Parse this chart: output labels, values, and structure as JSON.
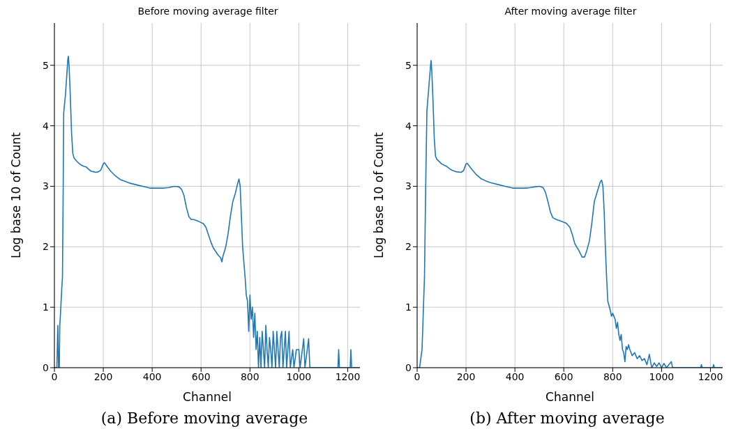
{
  "chart_data": [
    {
      "type": "line",
      "title": "Before moving average filter",
      "xlabel": "Channel",
      "ylabel": "Log base 10 of Count",
      "annotations": [
        "(a) Before moving average"
      ],
      "xlim": [
        0,
        1250
      ],
      "ylim": [
        0,
        5.7
      ],
      "xticks": [
        0,
        200,
        400,
        600,
        800,
        1000,
        1200
      ],
      "yticks": [
        0,
        1,
        2,
        3,
        4,
        5
      ],
      "grid": true,
      "legend": false,
      "marker": "none",
      "line_style": "solid",
      "series": [
        {
          "color": "#1f77b4",
          "x": [
            0,
            10,
            14,
            17,
            20,
            22,
            25,
            30,
            33,
            36,
            38,
            40,
            45,
            50,
            55,
            57,
            60,
            65,
            70,
            75,
            80,
            90,
            100,
            110,
            120,
            130,
            140,
            150,
            160,
            170,
            180,
            190,
            200,
            205,
            215,
            230,
            250,
            270,
            290,
            310,
            330,
            350,
            370,
            390,
            410,
            430,
            450,
            470,
            490,
            510,
            520,
            530,
            540,
            550,
            560,
            570,
            590,
            610,
            620,
            630,
            640,
            650,
            660,
            670,
            680,
            685,
            690,
            700,
            710,
            720,
            730,
            740,
            750,
            755,
            760,
            765,
            770,
            780,
            785,
            790,
            795,
            800,
            805,
            810,
            815,
            820,
            825,
            830,
            835,
            840,
            845,
            850,
            855,
            860,
            865,
            870,
            875,
            880,
            885,
            890,
            895,
            900,
            905,
            910,
            915,
            920,
            925,
            930,
            935,
            940,
            945,
            950,
            955,
            960,
            965,
            975,
            980,
            990,
            1000,
            1005,
            1020,
            1025,
            1040,
            1045,
            1160,
            1163,
            1166,
            1210,
            1213,
            1216,
            1250
          ],
          "values": [
            0,
            0,
            0.7,
            0,
            0,
            0.7,
            0.9,
            1.3,
            1.5,
            3,
            4.2,
            4.3,
            4.5,
            4.8,
            5.1,
            5.15,
            5.0,
            4.5,
            3.9,
            3.55,
            3.47,
            3.42,
            3.38,
            3.35,
            3.33,
            3.32,
            3.28,
            3.25,
            3.24,
            3.23,
            3.24,
            3.27,
            3.37,
            3.39,
            3.33,
            3.25,
            3.17,
            3.11,
            3.08,
            3.05,
            3.03,
            3.01,
            2.99,
            2.97,
            2.97,
            2.97,
            2.97,
            2.98,
            3.0,
            2.99,
            2.95,
            2.85,
            2.65,
            2.5,
            2.45,
            2.45,
            2.42,
            2.38,
            2.32,
            2.2,
            2.08,
            1.98,
            1.92,
            1.86,
            1.82,
            1.75,
            1.85,
            1.98,
            2.2,
            2.5,
            2.75,
            2.88,
            3.05,
            3.12,
            3.0,
            2.5,
            2.0,
            1.5,
            1.2,
            1.1,
            0.6,
            1.2,
            0.8,
            1.0,
            0.5,
            0.9,
            0.3,
            0.6,
            0,
            0.5,
            0,
            0.6,
            0.3,
            0,
            0.7,
            0.3,
            0,
            0.5,
            0.3,
            0,
            0.6,
            0.3,
            0,
            0.6,
            0.3,
            0,
            0.5,
            0.6,
            0,
            0.3,
            0.6,
            0,
            0.3,
            0.6,
            0,
            0.3,
            0,
            0.3,
            0.3,
            0,
            0.48,
            0,
            0.48,
            0,
            0,
            0.3,
            0,
            0,
            0.3,
            0,
            0
          ]
        }
      ]
    },
    {
      "type": "line",
      "title": "After moving average filter",
      "xlabel": "Channel",
      "ylabel": "Log base 10 of Count",
      "annotations": [
        "(b) After moving average"
      ],
      "xlim": [
        0,
        1250
      ],
      "ylim": [
        0,
        5.7
      ],
      "xticks": [
        0,
        200,
        400,
        600,
        800,
        1000,
        1200
      ],
      "yticks": [
        0,
        1,
        2,
        3,
        4,
        5
      ],
      "grid": true,
      "legend": false,
      "marker": "none",
      "line_style": "solid",
      "series": [
        {
          "color": "#1f77b4",
          "x": [
            0,
            10,
            15,
            20,
            25,
            30,
            35,
            40,
            45,
            50,
            55,
            57,
            60,
            65,
            70,
            75,
            80,
            100,
            120,
            140,
            160,
            180,
            190,
            200,
            205,
            220,
            240,
            260,
            280,
            300,
            330,
            360,
            390,
            420,
            450,
            480,
            500,
            515,
            525,
            535,
            545,
            555,
            570,
            590,
            610,
            625,
            635,
            645,
            660,
            675,
            685,
            695,
            705,
            715,
            725,
            740,
            750,
            755,
            760,
            765,
            770,
            775,
            780,
            790,
            795,
            800,
            810,
            815,
            820,
            825,
            830,
            835,
            840,
            845,
            850,
            855,
            860,
            865,
            870,
            880,
            890,
            900,
            910,
            920,
            930,
            940,
            950,
            955,
            960,
            970,
            980,
            990,
            1000,
            1010,
            1020,
            1040,
            1045,
            1160,
            1163,
            1166,
            1210,
            1213,
            1216,
            1250
          ],
          "values": [
            0,
            0,
            0.15,
            0.3,
            0.9,
            1.5,
            3.0,
            4.25,
            4.5,
            4.75,
            5.0,
            5.08,
            4.9,
            4.4,
            3.8,
            3.5,
            3.45,
            3.37,
            3.33,
            3.27,
            3.24,
            3.23,
            3.26,
            3.37,
            3.38,
            3.3,
            3.2,
            3.13,
            3.09,
            3.06,
            3.03,
            3.0,
            2.97,
            2.97,
            2.97,
            2.99,
            3.0,
            2.98,
            2.9,
            2.75,
            2.58,
            2.48,
            2.45,
            2.42,
            2.39,
            2.32,
            2.2,
            2.05,
            1.95,
            1.83,
            1.83,
            1.95,
            2.1,
            2.4,
            2.75,
            2.95,
            3.08,
            3.1,
            3.0,
            2.6,
            2.0,
            1.5,
            1.1,
            0.95,
            0.85,
            0.9,
            0.8,
            0.65,
            0.75,
            0.55,
            0.45,
            0.55,
            0.3,
            0.25,
            0.1,
            0.35,
            0.3,
            0.38,
            0.3,
            0.2,
            0.25,
            0.15,
            0.2,
            0.12,
            0.15,
            0.05,
            0.22,
            0.1,
            0,
            0.08,
            0.02,
            0.08,
            0,
            0.07,
            0,
            0.1,
            0,
            0,
            0.05,
            0,
            0,
            0.05,
            0,
            0
          ]
        }
      ]
    }
  ]
}
